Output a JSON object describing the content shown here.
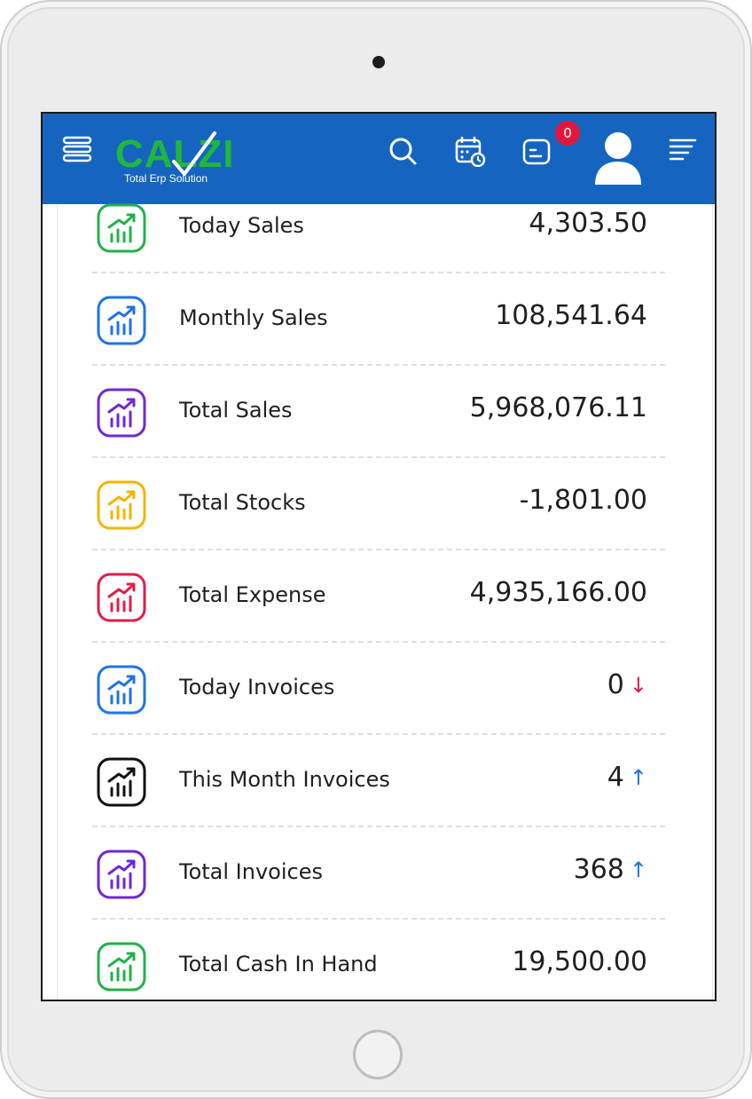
{
  "header": {
    "logo_text": "CALZI",
    "logo_tagline": "Total Erp Solution",
    "notification_count": "0",
    "brand_color": "#1565c0",
    "icons": [
      "menu-icon",
      "search-icon",
      "calendar-icon",
      "notes-icon",
      "avatar-icon",
      "list-icon"
    ]
  },
  "stats": [
    {
      "label": "Today Sales",
      "value": "4,303.50",
      "icon_color": "#22b04b"
    },
    {
      "label": "Monthly Sales",
      "value": "108,541.64",
      "icon_color": "#1e73e8"
    },
    {
      "label": "Total Sales",
      "value": "5,968,076.11",
      "icon_color": "#6d28d9"
    },
    {
      "label": "Total Stocks",
      "value": "-1,801.00",
      "icon_color": "#f4b400"
    },
    {
      "label": "Total Expense",
      "value": "4,935,166.00",
      "icon_color": "#e11d48"
    },
    {
      "label": "Today Invoices",
      "value": "0",
      "icon_color": "#1e73e8",
      "trend": "↓",
      "trend_color": "#e11d48"
    },
    {
      "label": "This Month Invoices",
      "value": "4",
      "icon_color": "#111111",
      "trend": "↑",
      "trend_color": "#1e73e8"
    },
    {
      "label": "Total Invoices",
      "value": "368",
      "icon_color": "#6d28d9",
      "trend": "↑",
      "trend_color": "#1e73e8"
    },
    {
      "label": "Total Cash In Hand",
      "value": "19,500.00",
      "icon_color": "#22b04b"
    }
  ]
}
